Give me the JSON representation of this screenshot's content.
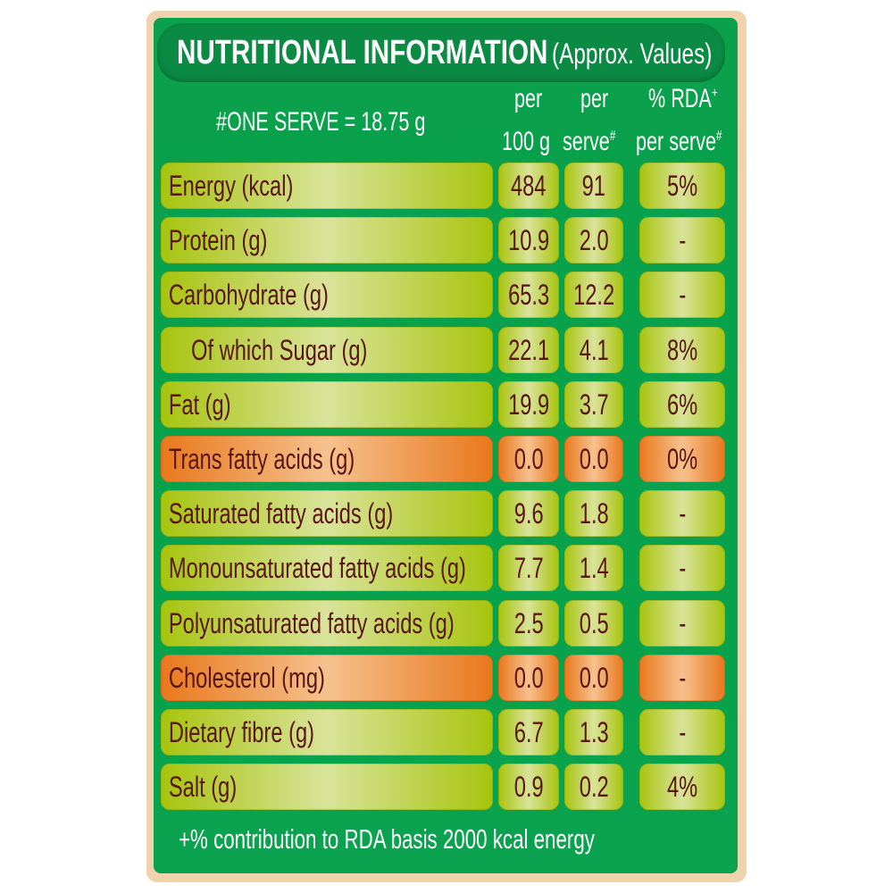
{
  "title": {
    "main": "NUTRITIONAL INFORMATION",
    "sub": "(Approx. Values)"
  },
  "serve_note": "#ONE SERVE = 18.75 g",
  "columns": {
    "per_100g_line1": "per",
    "per_100g_line2": "100 g",
    "per_serve_line1": "per",
    "per_serve_line2": "serve",
    "per_serve_mark": "#",
    "rda_line1": "% RDA",
    "rda_mark": "+",
    "rda_line2": "per serve",
    "rda_line2_mark": "#"
  },
  "rows": [
    {
      "label": "Energy (kcal)",
      "per100": "484",
      "perServe": "91",
      "rda": "5%",
      "highlight": false,
      "indent": false
    },
    {
      "label": "Protein (g)",
      "per100": "10.9",
      "perServe": "2.0",
      "rda": "-",
      "highlight": false,
      "indent": false
    },
    {
      "label": "Carbohydrate (g)",
      "per100": "65.3",
      "perServe": "12.2",
      "rda": "-",
      "highlight": false,
      "indent": false
    },
    {
      "label": "Of which Sugar (g)",
      "per100": "22.1",
      "perServe": "4.1",
      "rda": "8%",
      "highlight": false,
      "indent": true
    },
    {
      "label": "Fat (g)",
      "per100": "19.9",
      "perServe": "3.7",
      "rda": "6%",
      "highlight": false,
      "indent": false
    },
    {
      "label": "Trans fatty acids (g)",
      "per100": "0.0",
      "perServe": "0.0",
      "rda": "0%",
      "highlight": true,
      "indent": false
    },
    {
      "label": "Saturated fatty acids (g)",
      "per100": "9.6",
      "perServe": "1.8",
      "rda": "-",
      "highlight": false,
      "indent": false
    },
    {
      "label": "Monounsaturated fatty acids (g)",
      "per100": "7.7",
      "perServe": "1.4",
      "rda": "-",
      "highlight": false,
      "indent": false
    },
    {
      "label": "Polyunsaturated fatty acids (g)",
      "per100": "2.5",
      "perServe": "0.5",
      "rda": "-",
      "highlight": false,
      "indent": false
    },
    {
      "label": "Cholesterol (mg)",
      "per100": "0.0",
      "perServe": "0.0",
      "rda": "-",
      "highlight": true,
      "indent": false
    },
    {
      "label": "Dietary fibre (g)",
      "per100": "6.7",
      "perServe": "1.3",
      "rda": "-",
      "highlight": false,
      "indent": false
    },
    {
      "label": "Salt (g)",
      "per100": "0.9",
      "perServe": "0.2",
      "rda": "4%",
      "highlight": false,
      "indent": false
    }
  ],
  "footer": "+% contribution to RDA basis 2000 kcal energy",
  "colors": {
    "panel_green": "#07a24b",
    "title_green": "#0a8a42",
    "cell_lime": "#a7c40e",
    "cell_orange": "#e8781c",
    "text_maroon": "#5a1515",
    "border_tan": "#eed3ac"
  }
}
